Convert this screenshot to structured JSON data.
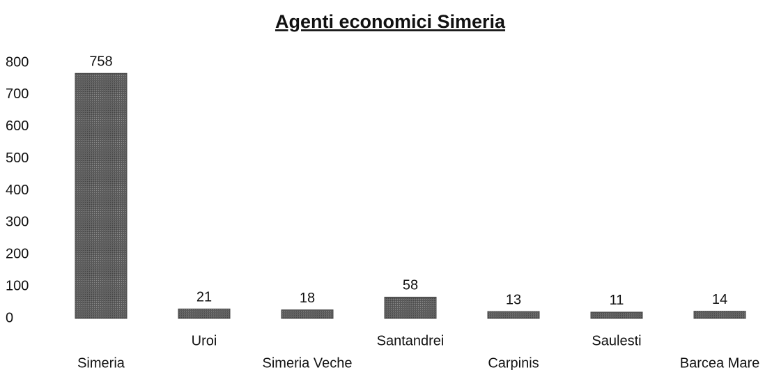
{
  "chart_data": {
    "type": "bar",
    "title": "Agenti economici Simeria",
    "categories": [
      "Simeria",
      "Uroi",
      "Simeria Veche",
      "Santandrei",
      "Carpinis",
      "Saulesti",
      "Barcea Mare"
    ],
    "values": [
      758,
      21,
      18,
      58,
      13,
      11,
      14
    ],
    "color": "#6b6b6b",
    "ylim": [
      0,
      800
    ],
    "yticks": [
      0,
      100,
      200,
      300,
      400,
      500,
      600,
      700,
      800
    ],
    "grid": false
  }
}
